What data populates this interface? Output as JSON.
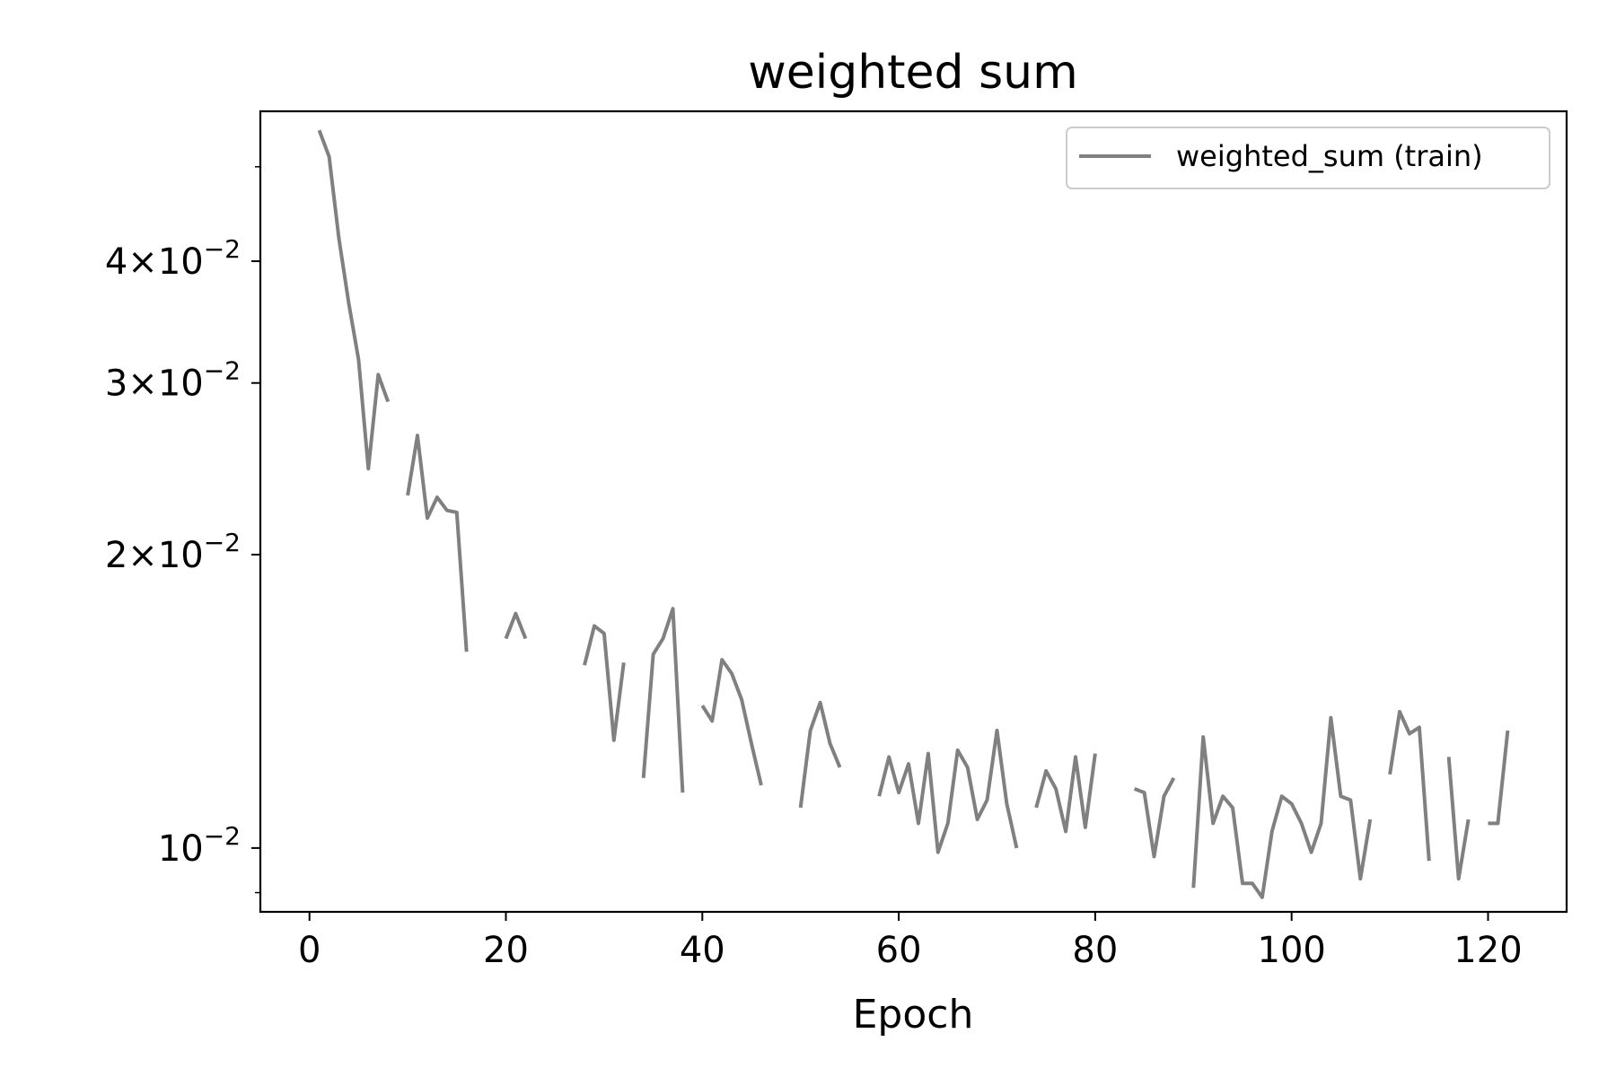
{
  "chart_data": {
    "type": "line",
    "title": "weighted sum",
    "xlabel": "Epoch",
    "ylabel": "",
    "xlim": [
      -5,
      128
    ],
    "ylim": [
      0.0086,
      0.057
    ],
    "yscale": "log",
    "grid": false,
    "legend_position": "top-right",
    "x_ticks": [
      0,
      20,
      40,
      60,
      80,
      100,
      120
    ],
    "y_ticks": [
      {
        "value": 0.01,
        "mantissa": "",
        "exponent": "−2"
      },
      {
        "value": 0.02,
        "mantissa": "2",
        "exponent": "−2"
      },
      {
        "value": 0.03,
        "mantissa": "3",
        "exponent": "−2"
      },
      {
        "value": 0.04,
        "mantissa": "4",
        "exponent": "−2"
      }
    ],
    "y_minor_ticks": [
      0.009,
      0.05
    ],
    "series": [
      {
        "name": "weighted_sum (train)",
        "color": "#808080",
        "segments": [
          [
            [
              1,
              0.0545
            ],
            [
              2,
              0.0512
            ],
            [
              3,
              0.0422
            ],
            [
              4,
              0.0362
            ],
            [
              5,
              0.0317
            ],
            [
              6,
              0.0245
            ],
            [
              7,
              0.0306
            ],
            [
              8,
              0.0287
            ]
          ],
          [
            [
              10,
              0.023
            ],
            [
              11,
              0.0265
            ],
            [
              12,
              0.0218
            ],
            [
              13,
              0.0229
            ],
            [
              14,
              0.0222
            ],
            [
              15,
              0.0221
            ],
            [
              16,
              0.0159
            ]
          ],
          [
            [
              20,
              0.0164
            ],
            [
              21,
              0.0174
            ],
            [
              22,
              0.0164
            ]
          ],
          [
            [
              28,
              0.0154
            ],
            [
              29,
              0.0169
            ],
            [
              30,
              0.0166
            ],
            [
              31,
              0.0129
            ],
            [
              32,
              0.0155
            ]
          ],
          [
            [
              34,
              0.0118
            ],
            [
              35,
              0.0158
            ],
            [
              36,
              0.0164
            ],
            [
              37,
              0.0176
            ],
            [
              38,
              0.0114
            ]
          ],
          [
            [
              40,
              0.014
            ],
            [
              41,
              0.0135
            ],
            [
              42,
              0.0156
            ],
            [
              43,
              0.0151
            ],
            [
              44,
              0.0142
            ],
            [
              45,
              0.0128
            ],
            [
              46,
              0.0116
            ]
          ],
          [
            [
              50,
              0.011
            ],
            [
              51,
              0.0132
            ],
            [
              52,
              0.0141
            ],
            [
              53,
              0.0128
            ],
            [
              54,
              0.0121
            ]
          ],
          [
            [
              58,
              0.0113
            ],
            [
              59,
              0.0124
            ],
            [
              60,
              0.0114
            ],
            [
              61,
              0.0122
            ],
            [
              62,
              0.0106
            ],
            [
              63,
              0.0125
            ],
            [
              64,
              0.0099
            ],
            [
              65,
              0.0106
            ],
            [
              66,
              0.0126
            ],
            [
              67,
              0.0121
            ],
            [
              68,
              0.0107
            ],
            [
              69,
              0.0112
            ],
            [
              70,
              0.0132
            ],
            [
              71,
              0.0111
            ],
            [
              72,
              0.01
            ]
          ],
          [
            [
              74,
              0.011
            ],
            [
              75,
              0.012
            ],
            [
              76,
              0.0115
            ],
            [
              77,
              0.0104
            ],
            [
              78,
              0.0124
            ],
            [
              79,
              0.0105
            ],
            [
              80,
              0.0125
            ]
          ],
          [
            [
              84,
              0.0115
            ],
            [
              85,
              0.0114
            ],
            [
              86,
              0.0098
            ],
            [
              87,
              0.0113
            ],
            [
              88,
              0.0118
            ]
          ],
          [
            [
              90,
              0.0091
            ],
            [
              91,
              0.013
            ],
            [
              92,
              0.0106
            ],
            [
              93,
              0.0113
            ],
            [
              94,
              0.011
            ],
            [
              95,
              0.0092
            ],
            [
              96,
              0.0092
            ],
            [
              97,
              0.0089
            ],
            [
              98,
              0.0104
            ],
            [
              99,
              0.0113
            ],
            [
              100,
              0.0111
            ],
            [
              101,
              0.0106
            ],
            [
              102,
              0.0099
            ],
            [
              103,
              0.0106
            ],
            [
              104,
              0.0136
            ],
            [
              105,
              0.0113
            ],
            [
              106,
              0.0112
            ],
            [
              107,
              0.0093
            ],
            [
              108,
              0.0107
            ]
          ],
          [
            [
              110,
              0.0119
            ],
            [
              111,
              0.0138
            ],
            [
              112,
              0.0131
            ],
            [
              113,
              0.0133
            ],
            [
              114,
              0.0097
            ]
          ],
          [
            [
              116,
              0.0124
            ],
            [
              117,
              0.0093
            ],
            [
              118,
              0.0107
            ]
          ],
          [
            [
              120,
              0.0106
            ],
            [
              121,
              0.0106
            ],
            [
              122,
              0.0132
            ]
          ]
        ]
      }
    ]
  }
}
